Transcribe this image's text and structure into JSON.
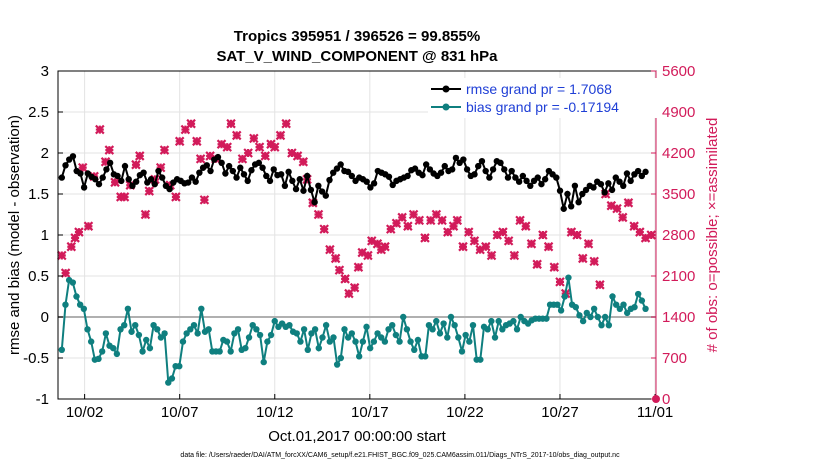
{
  "chart_data": {
    "type": "line",
    "title": "Tropics 395951 / 396526 = 99.855%",
    "subtitle": "SAT_V_WIND_COMPONENT @ 831 hPa",
    "xlabel": "Oct.01,2017 00:00:00 start",
    "ylabel": "rmse and bias (model - observation)",
    "y2label": "# of obs: o=possible; ×=assimilated",
    "footnote": "data file: /Users/raeder/DAI/ATM_forcXX/CAM6_setup/f.e21.FHIST_BGC.f09_025.CAM6assim.011/Diags_NTrS_2017-10/obs_diag_output.nc",
    "xlim": [
      0.6,
      32.05
    ],
    "ylim": [
      -1,
      3
    ],
    "y2lim": [
      0,
      5600
    ],
    "x_ticks": [
      2,
      7,
      12,
      17,
      22,
      27,
      32
    ],
    "x_tick_labels": [
      "10/02",
      "10/07",
      "10/12",
      "10/17",
      "10/22",
      "10/27",
      "11/01"
    ],
    "y_ticks": [
      -1,
      -0.5,
      0,
      0.5,
      1,
      1.5,
      2,
      2.5,
      3
    ],
    "y_tick_labels": [
      "-1",
      "-0.5",
      "0",
      "0.5",
      "1",
      "1.5",
      "2",
      "2.5",
      "3"
    ],
    "y2_ticks": [
      0,
      700,
      1400,
      2100,
      2800,
      3500,
      4200,
      4900,
      5600
    ],
    "y2_tick_labels": [
      "0",
      "700",
      "1400",
      "2100",
      "2800",
      "3500",
      "4200",
      "4900",
      "5600"
    ],
    "legend": [
      {
        "label": "rmse grand pr = 1.7068",
        "color": "#000000"
      },
      {
        "label": "bias grand pr = -0.17194",
        "color": "#0f7f7f"
      }
    ],
    "zero_line_color": "#b0b0b0",
    "obs_color": "#d21b5a",
    "rmse": {
      "name": "rmse",
      "color": "#000000",
      "y": [
        1.7,
        1.85,
        1.92,
        1.96,
        1.78,
        1.75,
        1.58,
        1.75,
        1.71,
        1.68,
        1.62,
        1.7,
        1.8,
        1.88,
        1.74,
        1.72,
        1.66,
        1.84,
        1.68,
        1.6,
        1.65,
        1.73,
        1.76,
        1.64,
        1.68,
        1.62,
        1.78,
        1.7,
        1.6,
        1.56,
        1.64,
        1.68,
        1.66,
        1.63,
        1.64,
        1.7,
        1.65,
        1.76,
        1.82,
        1.85,
        1.78,
        1.92,
        1.95,
        1.88,
        1.75,
        1.84,
        1.78,
        1.7,
        1.82,
        1.74,
        1.66,
        1.79,
        1.86,
        1.88,
        1.82,
        1.72,
        1.66,
        1.8,
        1.73,
        1.74,
        1.6,
        1.77,
        1.66,
        1.56,
        1.68,
        1.54,
        1.72,
        1.55,
        1.4,
        1.6,
        1.53,
        1.48,
        1.67,
        1.76,
        1.81,
        1.86,
        1.78,
        1.77,
        1.72,
        1.66,
        1.7,
        1.68,
        1.65,
        1.58,
        1.63,
        1.78,
        1.76,
        1.74,
        1.71,
        1.61,
        1.66,
        1.68,
        1.7,
        1.72,
        1.79,
        1.81,
        1.76,
        1.73,
        1.86,
        1.8,
        1.75,
        1.72,
        1.76,
        1.84,
        1.78,
        1.8,
        1.94,
        1.88,
        1.92,
        1.8,
        1.72,
        1.74,
        1.84,
        1.9,
        1.78,
        1.7,
        1.8,
        1.9,
        1.88,
        1.8,
        1.7,
        1.78,
        1.7,
        1.65,
        1.72,
        1.66,
        1.6,
        1.66,
        1.7,
        1.62,
        1.68,
        1.78,
        1.74,
        1.7,
        1.54,
        1.32,
        1.5,
        1.35,
        1.6,
        1.4,
        1.5,
        1.55,
        1.6,
        1.58,
        1.65,
        1.62,
        1.52,
        1.63,
        1.55,
        1.7,
        1.65,
        1.6,
        1.75,
        1.66,
        1.74,
        1.78,
        1.72,
        1.77
      ]
    },
    "bias": {
      "name": "bias",
      "color": "#0f7f7f",
      "y": [
        -0.4,
        0.15,
        0.45,
        0.42,
        0.25,
        0.15,
        0.1,
        -0.15,
        -0.3,
        -0.52,
        -0.51,
        -0.42,
        -0.2,
        -0.35,
        -0.38,
        -0.45,
        -0.15,
        -0.1,
        0.1,
        -0.18,
        -0.1,
        -0.22,
        -0.42,
        -0.28,
        -0.38,
        -0.1,
        -0.15,
        -0.25,
        -0.2,
        -0.8,
        -0.75,
        -0.6,
        -0.6,
        -0.3,
        -0.2,
        -0.15,
        -0.1,
        -0.2,
        0.1,
        -0.18,
        -0.15,
        -0.42,
        -0.42,
        -0.42,
        -0.28,
        -0.3,
        -0.42,
        -0.2,
        -0.15,
        -0.4,
        -0.38,
        -0.25,
        -0.1,
        -0.15,
        -0.22,
        -0.55,
        -0.3,
        -0.22,
        -0.05,
        -0.12,
        -0.08,
        -0.12,
        -0.1,
        -0.18,
        -0.2,
        -0.3,
        -0.15,
        -0.4,
        -0.2,
        -0.15,
        -0.38,
        -0.25,
        -0.1,
        -0.3,
        -0.25,
        -0.58,
        -0.5,
        -0.15,
        -0.25,
        -0.2,
        -0.3,
        -0.48,
        -0.3,
        -0.12,
        -0.38,
        -0.3,
        -0.2,
        -0.25,
        -0.3,
        -0.15,
        -0.1,
        -0.22,
        -0.3,
        0.0,
        -0.15,
        -0.3,
        -0.4,
        -0.28,
        -0.48,
        -0.48,
        -0.1,
        -0.15,
        -0.05,
        -0.2,
        -0.08,
        -0.25,
        0.0,
        -0.1,
        -0.25,
        -0.42,
        -0.22,
        -0.3,
        -0.1,
        -0.52,
        -0.52,
        -0.12,
        -0.15,
        -0.05,
        -0.25,
        -0.05,
        -0.15,
        -0.1,
        -0.08,
        -0.05,
        -0.15,
        0.0,
        -0.05,
        -0.08,
        -0.04,
        -0.02,
        -0.02,
        -0.02,
        -0.02,
        0.15,
        0.15,
        0.15,
        0.08,
        0.25,
        0.48,
        0.15,
        0.12,
        0.02,
        -0.05,
        0.05,
        0.0,
        0.1,
        0.0,
        -0.1,
        0.0,
        -0.1,
        0.25,
        0.15,
        0.1,
        0.15,
        0.05,
        0.1,
        0.12,
        0.28,
        0.2,
        0.1
      ]
    },
    "obs_assimilated": {
      "name": "assimilated",
      "x": [
        0.8,
        1.0,
        1.3,
        1.5,
        1.7,
        1.9,
        2.2,
        2.5,
        2.8,
        3.1,
        3.3,
        3.6,
        3.9,
        4.1,
        4.4,
        4.7,
        4.9,
        5.2,
        5.4,
        5.7,
        6.0,
        6.2,
        6.5,
        6.8,
        7.0,
        7.3,
        7.6,
        7.9,
        8.1,
        8.3,
        8.6,
        8.9,
        9.2,
        9.5,
        9.7,
        10.0,
        10.3,
        10.6,
        10.9,
        11.2,
        11.5,
        11.8,
        12.0,
        12.3,
        12.6,
        12.9,
        13.2,
        13.5,
        13.7,
        14.0,
        14.3,
        14.6,
        14.9,
        15.2,
        15.4,
        15.7,
        15.9,
        16.2,
        16.4,
        16.6,
        16.9,
        17.1,
        17.4,
        17.6,
        17.8,
        18.1,
        18.4,
        18.7,
        19.0,
        19.3,
        19.6,
        19.9,
        20.2,
        20.5,
        20.8,
        21.1,
        21.4,
        21.6,
        21.9,
        22.2,
        22.5,
        22.8,
        23.1,
        23.4,
        23.7,
        24.0,
        24.3,
        24.6,
        24.9,
        25.2,
        25.5,
        25.8,
        26.1,
        26.4,
        26.7,
        27.0,
        27.3,
        27.6,
        27.9,
        28.2,
        28.5,
        28.8,
        29.1,
        29.4,
        29.7,
        30.0,
        30.3,
        30.6,
        30.9,
        31.2,
        31.5,
        31.8
      ],
      "y": [
        2450,
        2150,
        2600,
        2750,
        2850,
        3950,
        2950,
        3800,
        4600,
        4050,
        4250,
        3700,
        3450,
        3450,
        3650,
        4000,
        4150,
        3150,
        3550,
        3750,
        3950,
        4250,
        3650,
        3450,
        4400,
        4600,
        4700,
        4400,
        4100,
        3400,
        4150,
        4100,
        4350,
        4300,
        4700,
        4500,
        4100,
        4200,
        4450,
        4300,
        4150,
        4350,
        4300,
        4500,
        4700,
        4200,
        4150,
        4050,
        3750,
        3350,
        3150,
        2900,
        2550,
        2400,
        2200,
        2050,
        1800,
        1900,
        2250,
        2500,
        2450,
        2700,
        2650,
        2550,
        2600,
        2900,
        3000,
        3100,
        2950,
        3150,
        3050,
        2750,
        3050,
        3150,
        3050,
        2850,
        2950,
        3050,
        2600,
        2850,
        2700,
        2550,
        2600,
        2450,
        2800,
        2850,
        2700,
        2450,
        3050,
        2950,
        2650,
        2300,
        2800,
        2600,
        2250,
        2000,
        1800,
        2850,
        2800,
        2400,
        2650,
        2350,
        1950,
        3500,
        3300,
        3250,
        3100,
        3350,
        2950,
        2850,
        2750,
        2800
      ]
    }
  }
}
